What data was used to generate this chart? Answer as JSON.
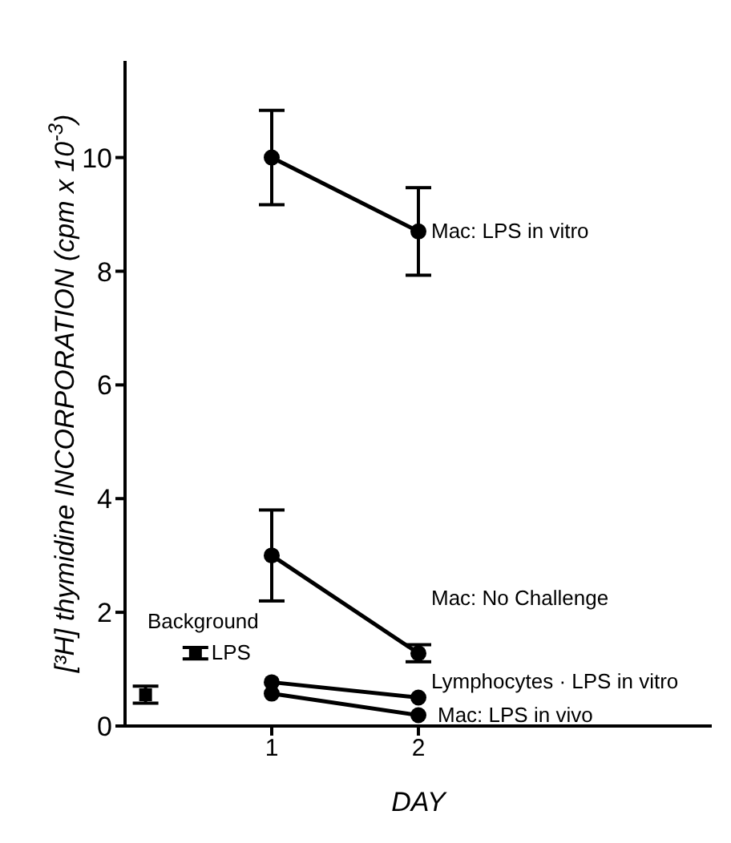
{
  "chart_data": {
    "type": "line",
    "xlabel": "DAY",
    "ylabel": "[³H] thymidine INCORPORATION (cpm x 10$^{-3}$)",
    "xlim": [
      0,
      4
    ],
    "xticks": [
      1,
      2
    ],
    "ylim": [
      0,
      11.7
    ],
    "yticks": [
      0,
      2,
      4,
      6,
      8,
      10
    ],
    "annotations": [
      "Background"
    ],
    "grid": false,
    "legend": false,
    "marker": "circle",
    "line_style": "solid",
    "series": [
      {
        "name": "Mac: LPS in vitro",
        "color": "#000000",
        "x": [
          1,
          2
        ],
        "values": [
          10.0,
          8.7
        ],
        "errors": [
          0.83,
          0.77
        ]
      },
      {
        "name": "Mac: No Challenge",
        "color": "#000000",
        "x": [
          1,
          2
        ],
        "values": [
          3.0,
          1.28
        ],
        "errors": [
          0.8,
          0.15
        ]
      },
      {
        "name": "Lymphocytes · LPS in vitro",
        "color": "#000000",
        "x": [
          1,
          2
        ],
        "values": [
          0.77,
          0.5
        ]
      },
      {
        "name": "Mac: LPS in vivo",
        "color": "#000000",
        "x": [
          1,
          2
        ],
        "values": [
          0.57,
          0.19
        ]
      },
      {
        "type": "scatter",
        "marker": "square",
        "color": "#000000",
        "x": [
          0.14
        ],
        "values": [
          0.55
        ],
        "errors": [
          0.15
        ]
      },
      {
        "name": "LPS",
        "type": "scatter",
        "marker": "square",
        "color": "#000000",
        "x": [
          0.48
        ],
        "values": [
          1.28
        ],
        "errors": [
          0.1
        ]
      }
    ]
  }
}
